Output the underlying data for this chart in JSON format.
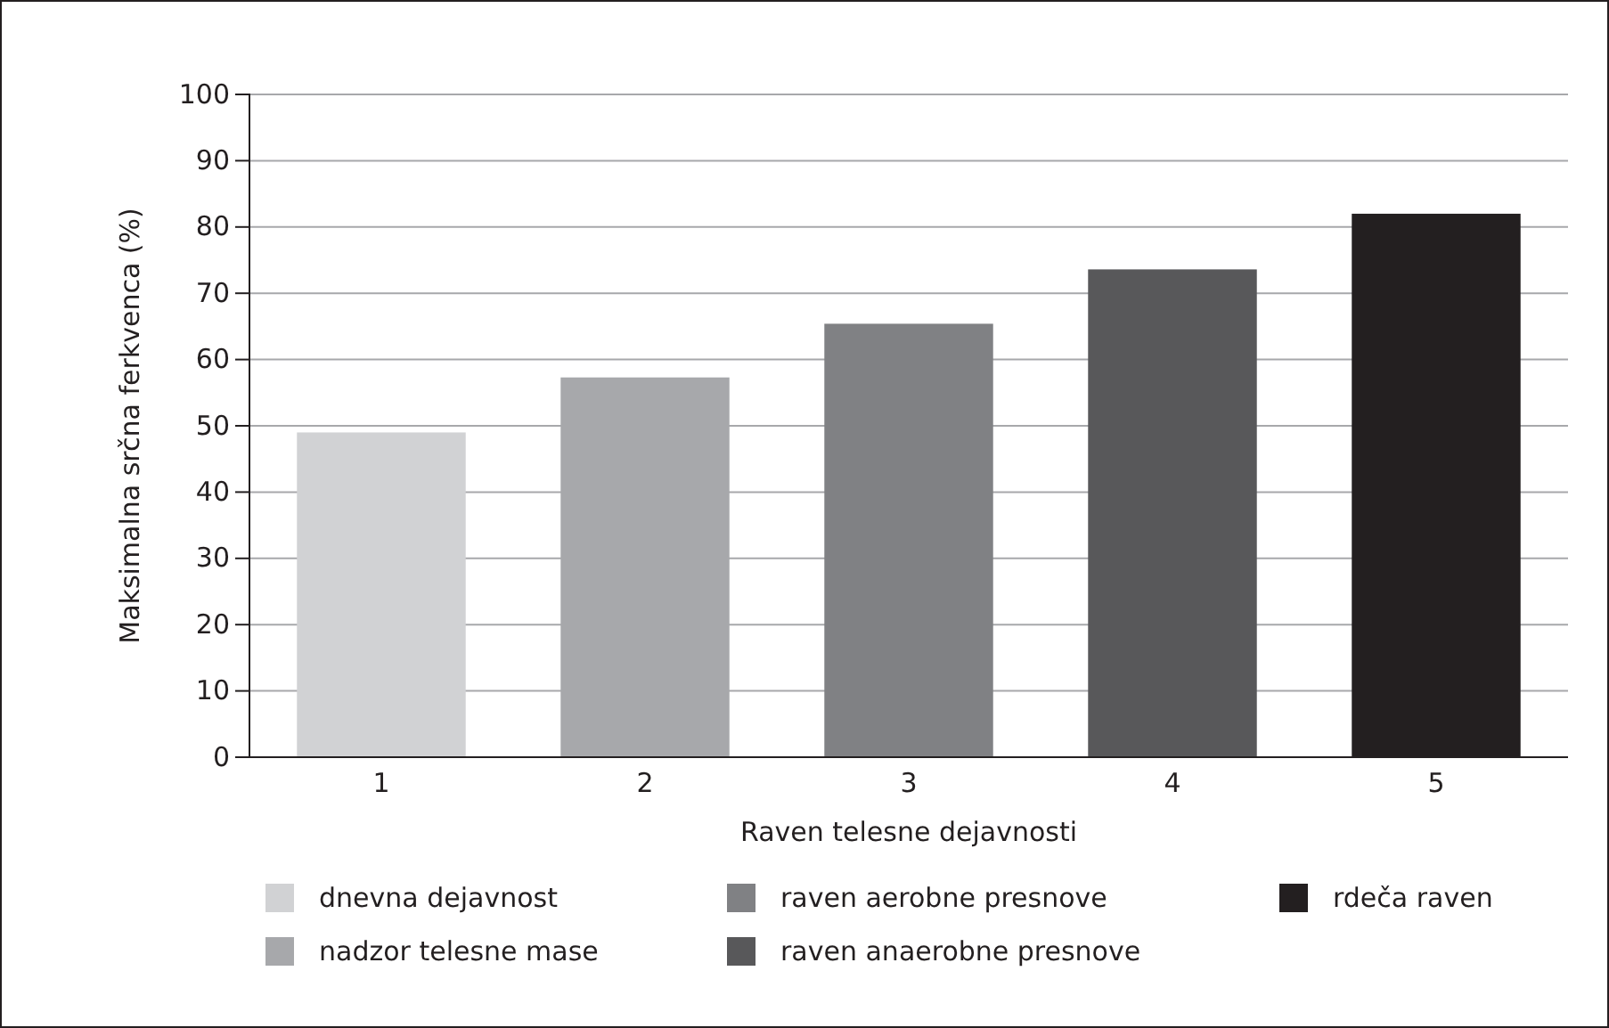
{
  "chart_data": {
    "type": "bar",
    "xlabel": "Raven telesne dejavnosti",
    "ylabel": "Maksimalna srčna ferkvenca (%)",
    "categories": [
      "1",
      "2",
      "3",
      "4",
      "5"
    ],
    "series": [
      {
        "name": "dnevna dejavnost",
        "color": "#d1d2d4",
        "values": [
          49,
          null,
          null,
          null,
          null
        ]
      },
      {
        "name": "nadzor telesne mase",
        "color": "#a7a8ab",
        "values": [
          null,
          57.3,
          null,
          null,
          null
        ]
      },
      {
        "name": "raven aerobne presnove",
        "color": "#808184",
        "values": [
          null,
          null,
          65.4,
          null,
          null
        ]
      },
      {
        "name": "raven anaerobne presnove",
        "color": "#58585a",
        "values": [
          null,
          null,
          null,
          73.6,
          null
        ]
      },
      {
        "name": "rdeča raven",
        "color": "#231f20",
        "values": [
          null,
          null,
          null,
          null,
          82
        ]
      }
    ],
    "ylim": [
      0,
      100
    ],
    "yticks": [
      0,
      10,
      20,
      30,
      40,
      50,
      60,
      70,
      80,
      90,
      100
    ],
    "grid": "y",
    "legend": "bottom"
  }
}
